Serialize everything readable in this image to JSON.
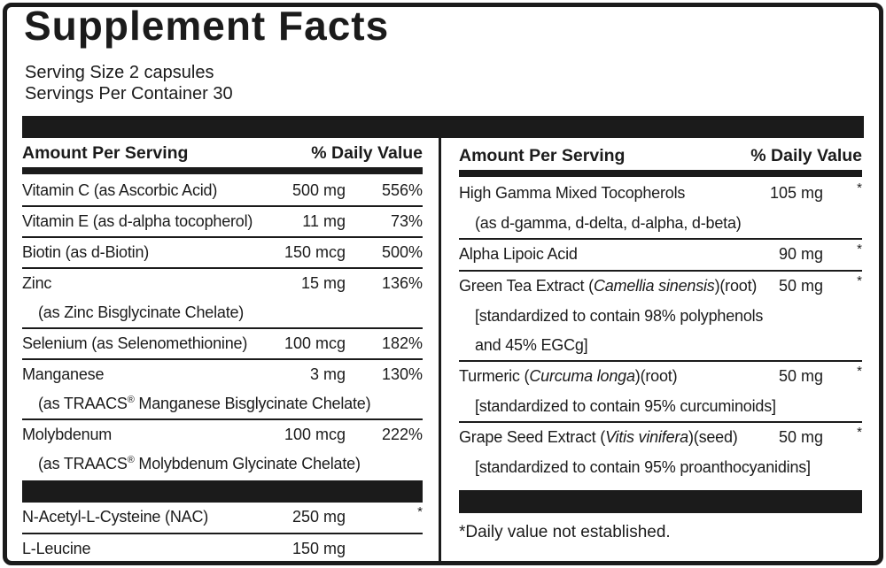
{
  "label": {
    "title": "Supplement Facts",
    "serving_size": "Serving Size 2 capsules",
    "servings_per_container": "Servings Per Container 30",
    "column_header": {
      "amount": "Amount Per Serving",
      "daily_value": "% Daily Value"
    },
    "footnote": "*Daily value not established.",
    "colors": {
      "ink": "#1b1b1b",
      "background": "#ffffff"
    },
    "left_column": {
      "rows": [
        {
          "name": "Vitamin C (as Ascorbic Acid)",
          "amount": "500 mg",
          "dv": "556%"
        },
        {
          "name": "Vitamin E (as d-alpha tocopherol)",
          "amount": "11 mg",
          "dv": "73%"
        },
        {
          "name": "Biotin (as d-Biotin)",
          "amount": "150 mcg",
          "dv": "500%"
        },
        {
          "name": "Zinc",
          "amount": "15 mg",
          "dv": "136%",
          "sublines": [
            "(as Zinc Bisglycinate Chelate)"
          ]
        },
        {
          "name": "Selenium (as Selenomethionine)",
          "amount": "100 mcg",
          "dv": "182%"
        },
        {
          "name": "Manganese",
          "amount": "3 mg",
          "dv": "130%",
          "sublines": [
            "(as TRAACS® Manganese Bisglycinate Chelate)"
          ]
        },
        {
          "name": "Molybdenum",
          "amount": "100 mcg",
          "dv": "222%",
          "sublines": [
            "(as TRAACS® Molybdenum Glycinate Chelate)"
          ]
        }
      ],
      "rows_below_bar": [
        {
          "name": "N-Acetyl-L-Cysteine (NAC)",
          "amount": "250 mg",
          "dv": "*"
        },
        {
          "name": "L-Leucine",
          "amount": "150 mg",
          "dv": ""
        }
      ]
    },
    "right_column": {
      "rows": [
        {
          "name": "High Gamma Mixed Tocopherols",
          "amount": "105 mg",
          "dv": "*",
          "sublines": [
            "(as d-gamma, d-delta, d-alpha, d-beta)"
          ]
        },
        {
          "name": "Alpha Lipoic Acid",
          "amount": "90 mg",
          "dv": "*"
        },
        {
          "name": [
            {
              "t": "Green Tea Extract ("
            },
            {
              "t": "Camellia sinensis",
              "i": true
            },
            {
              "t": ")(root)"
            }
          ],
          "amount": "50 mg",
          "dv": "*",
          "sublines": [
            "[standardized to contain 98% polyphenols",
            "and 45% EGCg]"
          ]
        },
        {
          "name": [
            {
              "t": "Turmeric ("
            },
            {
              "t": "Curcuma longa",
              "i": true
            },
            {
              "t": ")(root)"
            }
          ],
          "amount": "50 mg",
          "dv": "*",
          "sublines": [
            "[standardized to contain 95% curcuminoids]"
          ]
        },
        {
          "name": [
            {
              "t": "Grape Seed Extract ("
            },
            {
              "t": "Vitis vinifera",
              "i": true
            },
            {
              "t": ")(seed)"
            }
          ],
          "amount": "50 mg",
          "dv": "*",
          "sublines": [
            "[standardized to contain 95% proanthocyanidins]"
          ]
        }
      ]
    }
  }
}
